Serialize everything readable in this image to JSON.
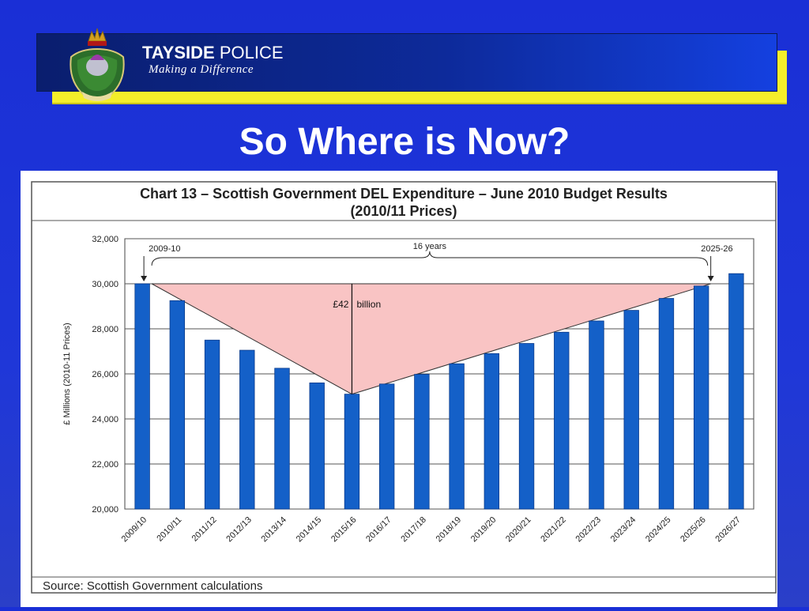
{
  "header": {
    "brand_bold": "TAYSIDE",
    "brand_rest": "POLICE",
    "tagline": "Making a Difference"
  },
  "slide": {
    "title": "So Where is Now?"
  },
  "colors": {
    "bar": "#1460c8",
    "gap_fill": "#f9c4c4",
    "banner_yellow": "#f4ee2a",
    "background": "#1f37d8"
  },
  "chart_data": {
    "type": "bar",
    "title": "Chart 13 – Scottish Government DEL Expenditure – June 2010 Budget Results",
    "subtitle": "(2010/11 Prices)",
    "ylabel": "£ Millions (2010-11 Prices)",
    "xlabel": "",
    "ylim": [
      20000,
      32000
    ],
    "yticks": [
      "20,000",
      "22,000",
      "24,000",
      "26,000",
      "28,000",
      "30,000",
      "32,000"
    ],
    "grid": true,
    "categories": [
      "2009/10",
      "2010/11",
      "2011/12",
      "2012/13",
      "2013/14",
      "2014/15",
      "2015/16",
      "2016/17",
      "2017/18",
      "2018/19",
      "2019/20",
      "2020/21",
      "2021/22",
      "2022/23",
      "2023/24",
      "2024/25",
      "2025/26",
      "2026/27"
    ],
    "values": [
      30000,
      29250,
      27500,
      27050,
      26250,
      25600,
      25100,
      25550,
      25980,
      26450,
      26900,
      27350,
      27850,
      28350,
      28820,
      29350,
      29900,
      30450
    ],
    "annotations": {
      "start_label": "2009-10",
      "end_label": "2025-26",
      "span_label": "16 years",
      "gap_label": "£42 billion"
    },
    "source": "Source: Scottish Government calculations"
  }
}
